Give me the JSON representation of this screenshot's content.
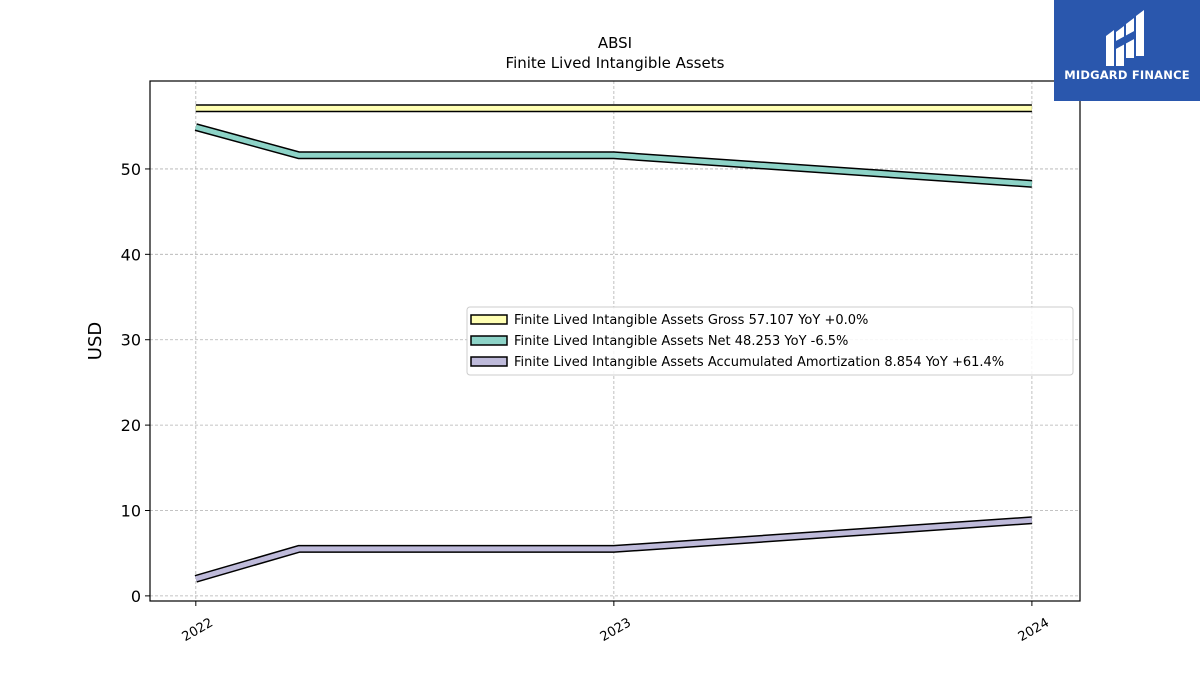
{
  "brand": {
    "name": "MIDGARD FINANCE",
    "logo_icon": "midgard-logo-icon",
    "background": "#2a57ad"
  },
  "chart_data": {
    "type": "line",
    "title": "ABSI",
    "subtitle": "Finite Lived Intangible Assets",
    "xlabel": "",
    "ylabel": "USD",
    "x": [
      "2022-01-01",
      "2022-04-01",
      "2023-01-01",
      "2024-01-01"
    ],
    "x_ticks": [
      "2022",
      "2023",
      "2024"
    ],
    "ylim": [
      -0.6,
      60.3
    ],
    "y_ticks": [
      0,
      10,
      20,
      30,
      40,
      50
    ],
    "grid": true,
    "legend_position": "center-right",
    "series": [
      {
        "name": "Finite Lived Intangible Assets Gross  57.107 YoY +0.0%",
        "values": [
          57.107,
          57.107,
          57.107,
          57.107
        ],
        "color": "#ffffb3"
      },
      {
        "name": "Finite Lived Intangible Assets Net  48.253 YoY -6.5%",
        "values": [
          54.9,
          51.6,
          51.6,
          48.253
        ],
        "color": "#8dd3c7"
      },
      {
        "name": "Finite Lived Intangible Assets Accumulated Amortization  8.854 YoY +61.4%",
        "values": [
          2.0,
          5.5,
          5.5,
          8.854
        ],
        "color": "#bebada"
      }
    ]
  }
}
